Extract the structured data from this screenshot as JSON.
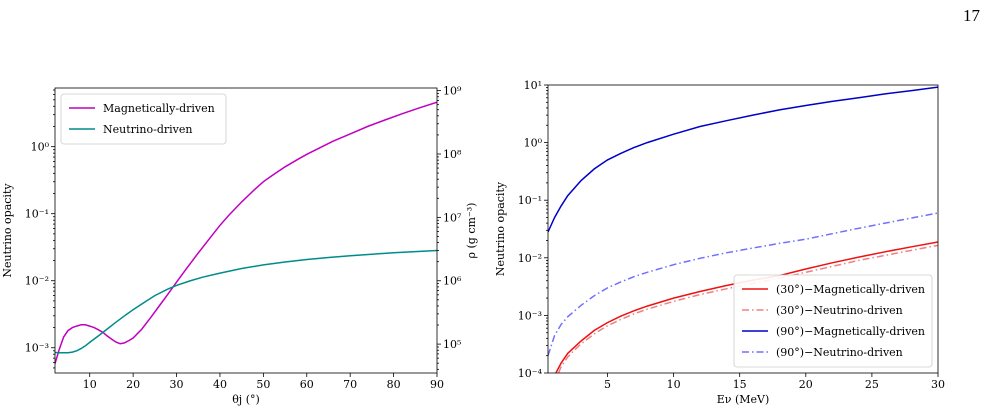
{
  "page": {
    "number": "17"
  },
  "chart_data": [
    {
      "type": "line",
      "xlabel": "θj (°)",
      "ylabel": "Neutrino opacity",
      "y2label": "ρ (g cm⁻³)",
      "xlim": [
        2,
        90
      ],
      "ylim": [
        0.00042,
        7.5
      ],
      "y_scale": "log",
      "y2lim": [
        35000,
        1100000000
      ],
      "y2_scale": "log",
      "x_ticks": [
        "10",
        "20",
        "30",
        "40",
        "50",
        "60",
        "70",
        "80",
        "90"
      ],
      "y_ticks": [
        "10⁻³",
        "10⁻²",
        "10⁻¹",
        "10⁰"
      ],
      "y2_ticks": [
        "10⁵",
        "10⁶",
        "10⁷",
        "10⁸",
        "10⁹"
      ],
      "legend_position": "top-left",
      "grid": false,
      "series": [
        {
          "name": "Magnetically-driven",
          "color": "#c000c0",
          "style": "solid",
          "x": [
            2,
            3,
            4,
            5,
            6,
            7,
            8,
            9,
            10,
            11,
            12,
            13,
            14,
            15,
            16,
            17,
            18,
            19,
            20,
            22,
            24,
            26,
            28,
            30,
            32,
            35,
            38,
            40,
            42,
            45,
            48,
            50,
            52,
            55,
            58,
            60,
            63,
            66,
            70,
            74,
            78,
            82,
            86,
            90
          ],
          "y": [
            0.00058,
            0.00095,
            0.00145,
            0.0018,
            0.002,
            0.0021,
            0.0022,
            0.0022,
            0.0021,
            0.002,
            0.00185,
            0.0017,
            0.0015,
            0.00135,
            0.00122,
            0.00115,
            0.00118,
            0.00128,
            0.0014,
            0.0019,
            0.0028,
            0.0042,
            0.0063,
            0.0095,
            0.0143,
            0.026,
            0.046,
            0.067,
            0.094,
            0.15,
            0.23,
            0.3,
            0.37,
            0.5,
            0.65,
            0.77,
            0.96,
            1.2,
            1.55,
            2.0,
            2.5,
            3.1,
            3.8,
            4.6
          ]
        },
        {
          "name": "Neutrino-driven",
          "color": "#008b8b",
          "style": "solid",
          "x": [
            2,
            3,
            4,
            5,
            6,
            7,
            8,
            9,
            10,
            12,
            14,
            16,
            18,
            20,
            22,
            25,
            28,
            30,
            33,
            36,
            40,
            45,
            50,
            55,
            60,
            65,
            70,
            75,
            80,
            85,
            90
          ],
          "y": [
            0.00085,
            0.00084,
            0.00084,
            0.00084,
            0.00086,
            0.0009,
            0.00097,
            0.00107,
            0.0012,
            0.0015,
            0.0019,
            0.0024,
            0.003,
            0.0037,
            0.0045,
            0.006,
            0.0075,
            0.0085,
            0.0099,
            0.0113,
            0.013,
            0.0152,
            0.0172,
            0.019,
            0.0207,
            0.0222,
            0.0236,
            0.0249,
            0.0261,
            0.0272,
            0.0282
          ]
        }
      ]
    },
    {
      "type": "line",
      "xlabel": "Eν (MeV)",
      "ylabel": "Neutrino opacity",
      "xlim": [
        0.5,
        30
      ],
      "ylim": [
        0.0001,
        10
      ],
      "y_scale": "log",
      "x_ticks": [
        "5",
        "10",
        "15",
        "20",
        "25",
        "30"
      ],
      "y_ticks": [
        "10⁻⁴",
        "10⁻³",
        "10⁻²",
        "10⁻¹",
        "10⁰",
        "10¹"
      ],
      "legend_position": "bottom-right",
      "grid": false,
      "series": [
        {
          "name": "(30°)−Magnetically-driven",
          "color": "#ee1111",
          "style": "solid",
          "x": [
            1.1,
            1.5,
            2,
            2.5,
            3,
            4,
            5,
            6,
            7,
            8,
            10,
            12,
            14,
            16,
            18,
            20,
            22,
            24,
            26,
            28,
            30
          ],
          "y": [
            0.0001,
            0.00015,
            0.00022,
            0.00028,
            0.00036,
            0.00055,
            0.00075,
            0.00097,
            0.0012,
            0.00145,
            0.002,
            0.0026,
            0.0033,
            0.0041,
            0.0049,
            0.0064,
            0.0082,
            0.0103,
            0.0127,
            0.0155,
            0.0188
          ]
        },
        {
          "name": "(30°)−Neutrino-driven",
          "color": "#f08080",
          "style": "dashdot",
          "x": [
            1.3,
            1.5,
            2,
            2.5,
            3,
            4,
            5,
            6,
            7,
            8,
            10,
            12,
            14,
            16,
            18,
            20,
            22,
            24,
            26,
            28,
            30
          ],
          "y": [
            0.0001,
            0.00013,
            0.00019,
            0.00025,
            0.00032,
            0.00048,
            0.00066,
            0.00085,
            0.00106,
            0.00128,
            0.00175,
            0.0023,
            0.0029,
            0.0036,
            0.0044,
            0.0056,
            0.0071,
            0.009,
            0.011,
            0.0135,
            0.0165
          ]
        },
        {
          "name": "(90°)−Magnetically-driven",
          "color": "#0000c8",
          "style": "solid",
          "x": [
            0.5,
            1,
            1.5,
            2,
            3,
            4,
            5,
            6,
            7,
            8,
            10,
            12,
            14,
            16,
            18,
            20,
            22,
            24,
            26,
            28,
            30
          ],
          "y": [
            0.028,
            0.05,
            0.08,
            0.12,
            0.22,
            0.35,
            0.5,
            0.65,
            0.82,
            1.0,
            1.4,
            1.9,
            2.4,
            3.0,
            3.7,
            4.4,
            5.2,
            6.0,
            7.0,
            8.0,
            9.2
          ]
        },
        {
          "name": "(90°)−Neutrino-driven",
          "color": "#7070ff",
          "style": "dashdot",
          "x": [
            0.5,
            1,
            1.5,
            2,
            3,
            4,
            5,
            6,
            7,
            8,
            10,
            12,
            14,
            16,
            18,
            20,
            22,
            24,
            26,
            28,
            30
          ],
          "y": [
            0.0002,
            0.00045,
            0.0007,
            0.00095,
            0.0015,
            0.0022,
            0.003,
            0.0038,
            0.0047,
            0.0056,
            0.0076,
            0.0098,
            0.0122,
            0.0148,
            0.0178,
            0.021,
            0.0262,
            0.0325,
            0.04,
            0.049,
            0.06
          ]
        }
      ]
    }
  ]
}
